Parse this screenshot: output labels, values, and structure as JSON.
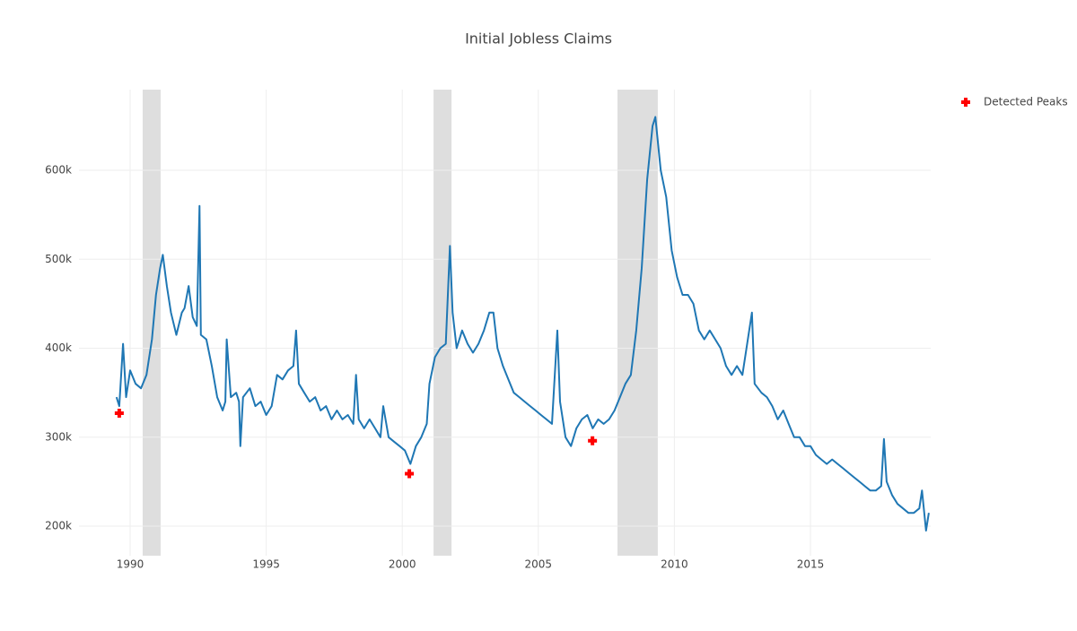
{
  "chart_data": {
    "type": "line",
    "title": "Initial Jobless Claims",
    "xlim": [
      1988.12,
      2019.42
    ],
    "xticks": [
      1990,
      1995,
      2000,
      2005,
      2010,
      2015
    ],
    "ylim": [
      166800,
      690700
    ],
    "yticks": [
      {
        "value": 200000,
        "label": "200k"
      },
      {
        "value": 300000,
        "label": "300k"
      },
      {
        "value": 400000,
        "label": "400k"
      },
      {
        "value": 500000,
        "label": "500k"
      },
      {
        "value": 600000,
        "label": "600k"
      }
    ],
    "grid": true,
    "legend": "top-right",
    "shaded_regions": [
      [
        1990.46,
        1991.12
      ],
      [
        2001.15,
        2001.81
      ],
      [
        2007.91,
        2009.39
      ]
    ],
    "shade_color": "#dedede",
    "series": [
      {
        "color": "#1f77b4",
        "x": [
          1989.5,
          1989.6,
          1989.74,
          1989.85,
          1990.0,
          1990.2,
          1990.4,
          1990.6,
          1990.8,
          1990.95,
          1991.1,
          1991.2,
          1991.35,
          1991.5,
          1991.7,
          1991.9,
          1992.0,
          1992.15,
          1992.3,
          1992.45,
          1992.55,
          1992.6,
          1992.8,
          1993.0,
          1993.2,
          1993.4,
          1993.5,
          1993.55,
          1993.7,
          1993.9,
          1994.0,
          1994.05,
          1994.15,
          1994.4,
          1994.6,
          1994.8,
          1995.0,
          1995.2,
          1995.4,
          1995.6,
          1995.8,
          1996.0,
          1996.1,
          1996.2,
          1996.4,
          1996.6,
          1996.8,
          1997.0,
          1997.2,
          1997.4,
          1997.6,
          1997.8,
          1998.0,
          1998.2,
          1998.3,
          1998.4,
          1998.6,
          1998.8,
          1999.0,
          1999.2,
          1999.3,
          1999.5,
          1999.7,
          1999.9,
          2000.1,
          2000.3,
          2000.5,
          2000.7,
          2000.9,
          2001.0,
          2001.2,
          2001.4,
          2001.6,
          2001.75,
          2001.85,
          2002.0,
          2002.2,
          2002.4,
          2002.6,
          2002.8,
          2003.0,
          2003.2,
          2003.35,
          2003.5,
          2003.7,
          2003.9,
          2004.1,
          2004.3,
          2004.5,
          2004.7,
          2004.9,
          2005.1,
          2005.3,
          2005.5,
          2005.7,
          2005.8,
          2006.0,
          2006.2,
          2006.4,
          2006.6,
          2006.8,
          2007.0,
          2007.2,
          2007.4,
          2007.6,
          2007.8,
          2008.0,
          2008.2,
          2008.4,
          2008.6,
          2008.8,
          2009.0,
          2009.2,
          2009.3,
          2009.5,
          2009.7,
          2009.9,
          2010.1,
          2010.3,
          2010.5,
          2010.7,
          2010.9,
          2011.1,
          2011.3,
          2011.5,
          2011.7,
          2011.9,
          2012.1,
          2012.3,
          2012.5,
          2012.85,
          2012.95,
          2013.2,
          2013.4,
          2013.6,
          2013.8,
          2014.0,
          2014.2,
          2014.4,
          2014.6,
          2014.8,
          2015.0,
          2015.2,
          2015.4,
          2015.6,
          2015.8,
          2016.0,
          2016.2,
          2016.4,
          2016.6,
          2016.8,
          2017.0,
          2017.2,
          2017.4,
          2017.6,
          2017.7,
          2017.8,
          2018.0,
          2018.2,
          2018.4,
          2018.6,
          2018.8,
          2019.0,
          2019.1,
          2019.25,
          2019.35
        ],
        "values": [
          345000,
          335000,
          405000,
          345000,
          375000,
          360000,
          355000,
          370000,
          410000,
          460000,
          490000,
          505000,
          470000,
          440000,
          415000,
          440000,
          445000,
          470000,
          435000,
          425000,
          560000,
          415000,
          410000,
          380000,
          345000,
          330000,
          340000,
          410000,
          345000,
          350000,
          340000,
          290000,
          345000,
          355000,
          335000,
          340000,
          325000,
          335000,
          370000,
          365000,
          375000,
          380000,
          420000,
          360000,
          350000,
          340000,
          345000,
          330000,
          335000,
          320000,
          330000,
          320000,
          325000,
          315000,
          370000,
          320000,
          310000,
          320000,
          310000,
          300000,
          335000,
          300000,
          295000,
          290000,
          285000,
          270000,
          290000,
          300000,
          315000,
          360000,
          390000,
          400000,
          405000,
          515000,
          440000,
          400000,
          420000,
          405000,
          395000,
          405000,
          420000,
          440000,
          440000,
          400000,
          380000,
          365000,
          350000,
          345000,
          340000,
          335000,
          330000,
          325000,
          320000,
          315000,
          420000,
          340000,
          300000,
          290000,
          310000,
          320000,
          325000,
          310000,
          320000,
          315000,
          320000,
          330000,
          345000,
          360000,
          370000,
          420000,
          490000,
          590000,
          650000,
          660000,
          600000,
          570000,
          510000,
          480000,
          460000,
          460000,
          450000,
          420000,
          410000,
          420000,
          410000,
          400000,
          380000,
          370000,
          380000,
          370000,
          440000,
          360000,
          350000,
          345000,
          335000,
          320000,
          330000,
          315000,
          300000,
          300000,
          290000,
          290000,
          280000,
          275000,
          270000,
          275000,
          270000,
          265000,
          260000,
          255000,
          250000,
          245000,
          240000,
          240000,
          245000,
          298000,
          250000,
          235000,
          225000,
          220000,
          215000,
          215000,
          220000,
          240000,
          195000,
          215000
        ]
      },
      {
        "name": "Detected Peaks",
        "color": "#ff0000",
        "marker": "cross",
        "mode": "markers",
        "x": [
          1989.6,
          2000.26,
          2006.99
        ],
        "values": [
          327000,
          259000,
          296000
        ]
      }
    ]
  }
}
